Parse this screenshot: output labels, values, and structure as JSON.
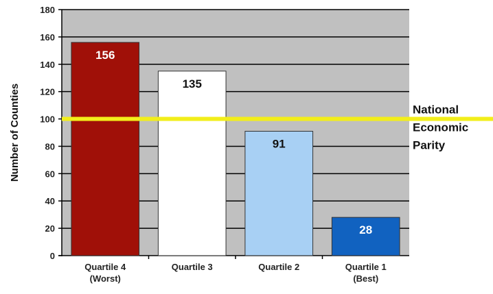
{
  "chart_data": {
    "type": "bar",
    "title": "",
    "xlabel": "",
    "ylabel": "Number of Counties",
    "ylim": [
      0,
      180
    ],
    "yticks": [
      0,
      20,
      40,
      60,
      80,
      100,
      120,
      140,
      160,
      180
    ],
    "grid": true,
    "categories": [
      [
        "Quartile 4",
        "(Worst)"
      ],
      [
        "Quartile 3"
      ],
      [
        "Quartile 2"
      ],
      [
        "Quartile 1",
        "(Best)"
      ]
    ],
    "values": [
      156,
      135,
      91,
      28
    ],
    "data_labels": [
      "156",
      "135",
      "91",
      "28"
    ],
    "colors": {
      "bars": [
        "#a01008",
        "#ffffff",
        "#a8d0f4",
        "#1162c0"
      ],
      "label_colors": [
        "#ffffff",
        "#111111",
        "#111111",
        "#ffffff"
      ],
      "plot_background": "#c0c0c0",
      "gridline": "#000000",
      "reference_line": "#f2ee1a"
    },
    "reference_line": {
      "value": 100,
      "label": [
        "National",
        "Economic",
        "Parity"
      ]
    }
  }
}
